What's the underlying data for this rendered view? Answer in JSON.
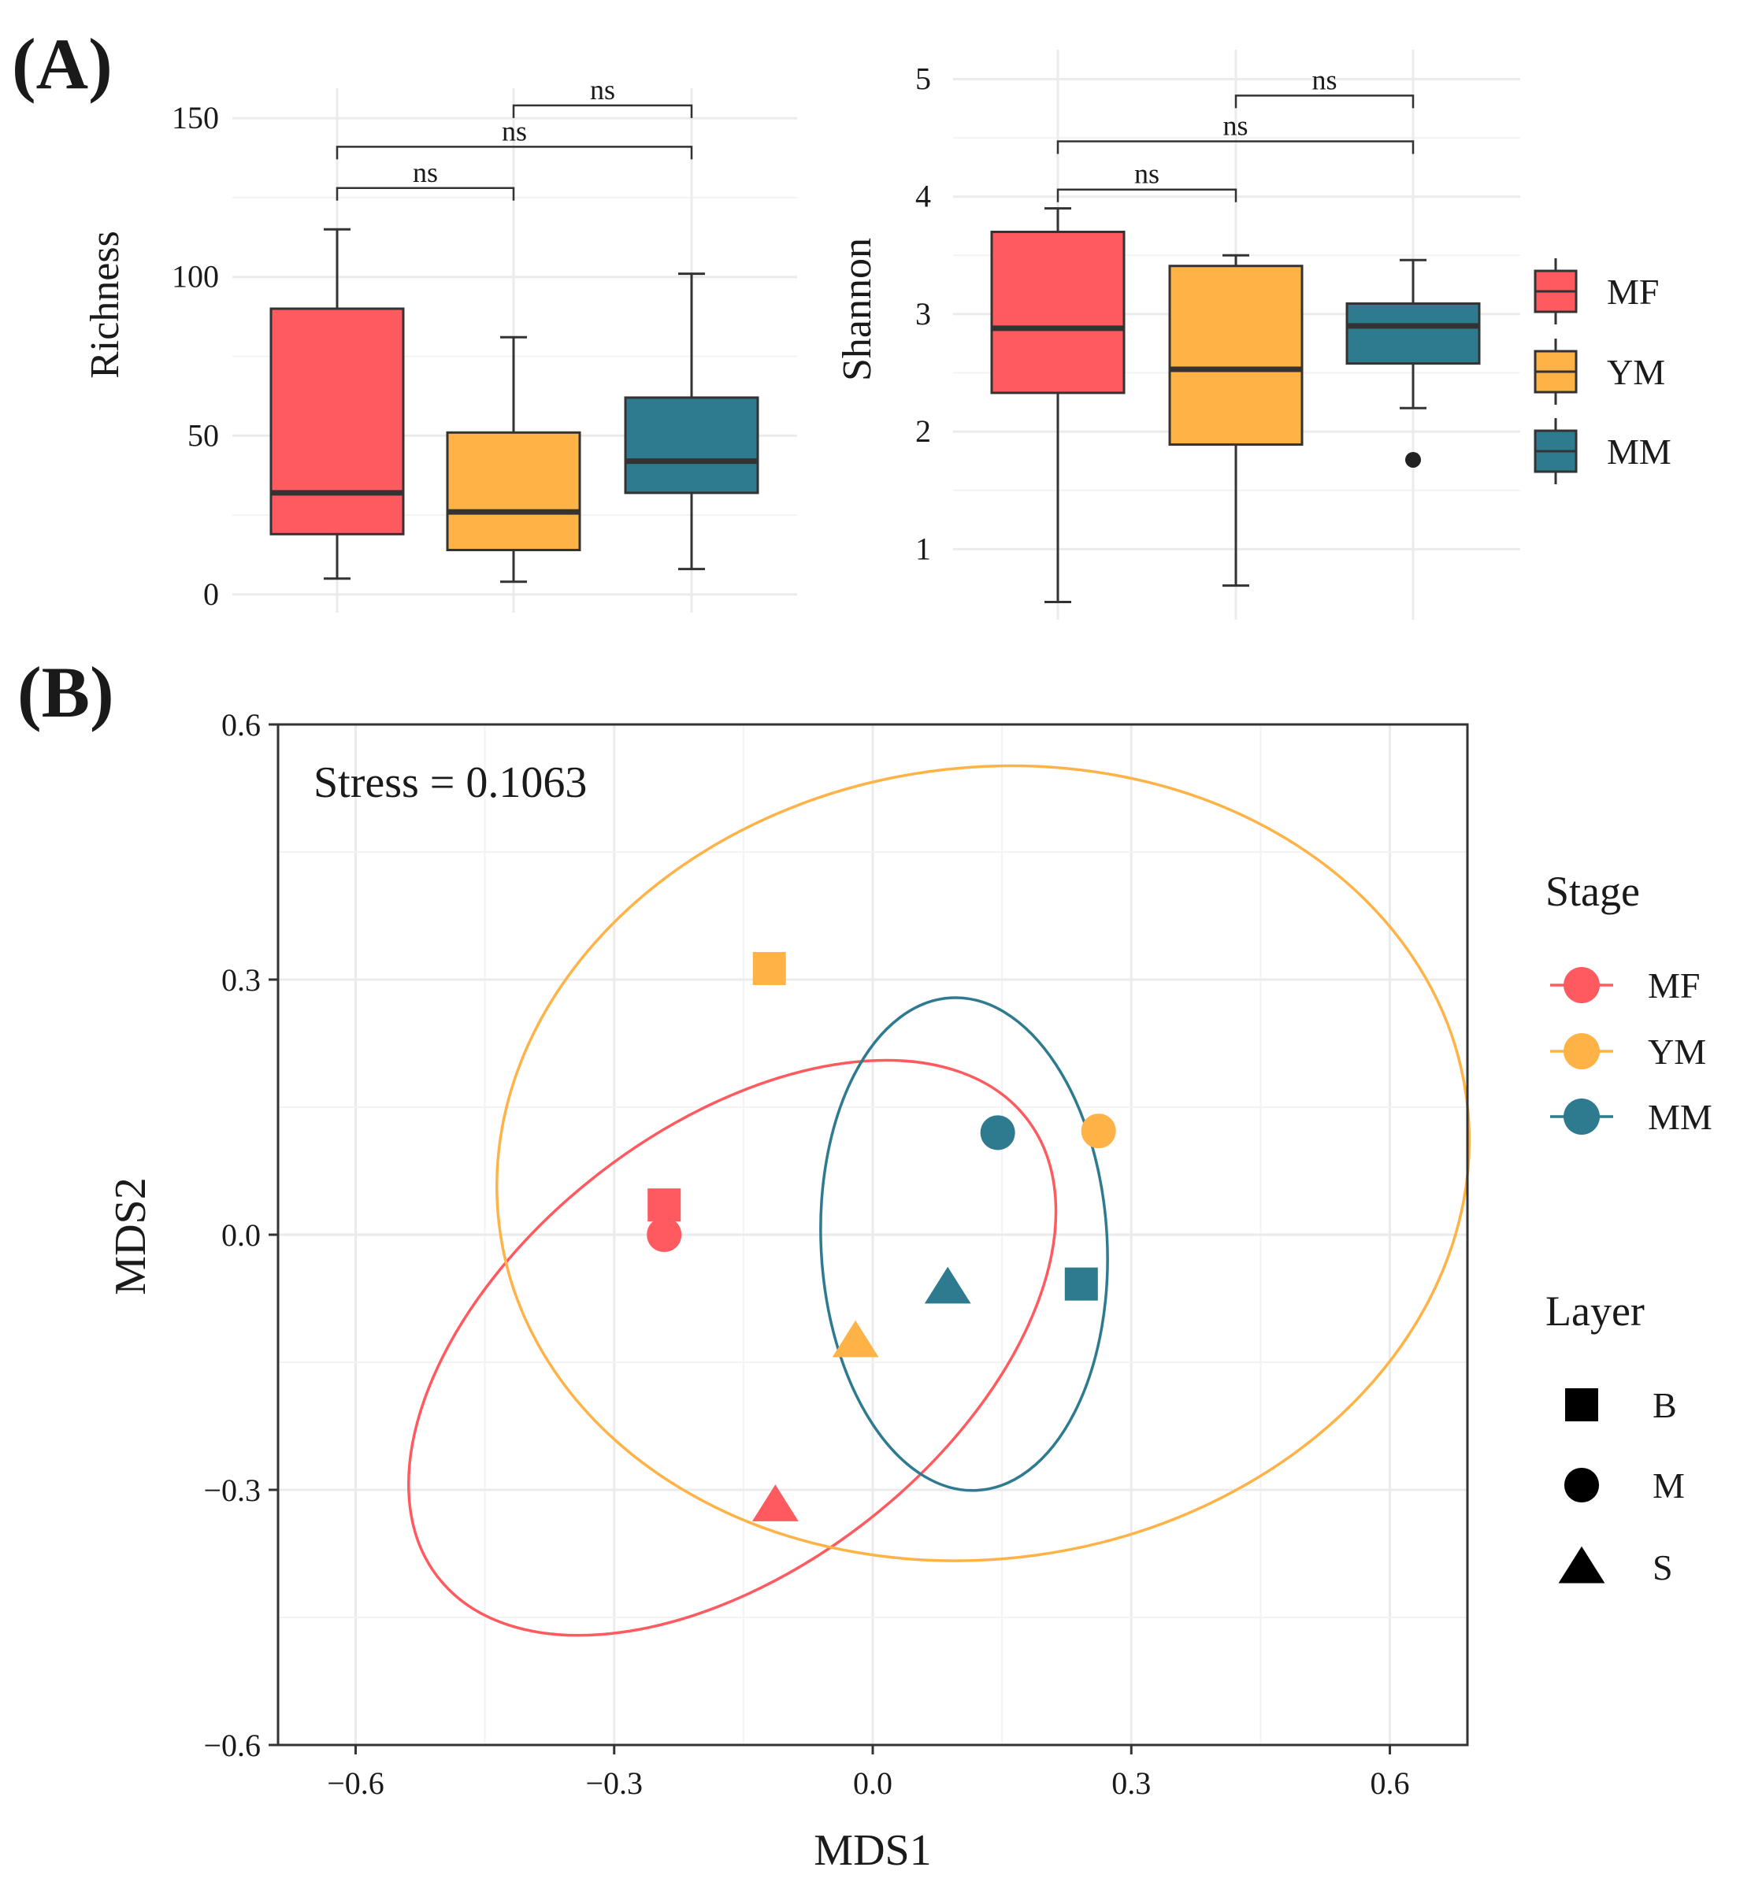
{
  "figure": {
    "panel_a_label": "(A)",
    "panel_b_label": "(B)"
  },
  "colors": {
    "MF": "#FF5A5F",
    "YM": "#FFB347",
    "MM": "#2E7A8E",
    "outlier": "#222222"
  },
  "chart_data": [
    {
      "id": "richness",
      "type": "box",
      "title": "",
      "xlabel": "",
      "ylabel": "Richness",
      "ylim": [
        -2,
        152
      ],
      "yticks": [
        0,
        50,
        100,
        150
      ],
      "grid": true,
      "groups": [
        {
          "name": "MF",
          "min": 5,
          "q1": 19,
          "median": 32,
          "q3": 90,
          "max": 115
        },
        {
          "name": "YM",
          "min": 4,
          "q1": 14,
          "median": 26,
          "q3": 51,
          "max": 81
        },
        {
          "name": "MM",
          "min": 8,
          "q1": 32,
          "median": 42,
          "q3": 62,
          "max": 101
        }
      ],
      "comparisons": [
        {
          "from": 0,
          "to": 1,
          "y": 128,
          "label": "ns"
        },
        {
          "from": 0,
          "to": 2,
          "y": 141,
          "label": "ns"
        },
        {
          "from": 1,
          "to": 2,
          "y": 154,
          "label": "ns"
        }
      ]
    },
    {
      "id": "shannon",
      "type": "box",
      "title": "",
      "xlabel": "",
      "ylabel": "Shannon",
      "ylim": [
        0.5,
        5.05
      ],
      "yticks": [
        1,
        2,
        3,
        4,
        5
      ],
      "grid": true,
      "groups": [
        {
          "name": "MF",
          "min": 0.55,
          "q1": 2.33,
          "median": 2.88,
          "q3": 3.7,
          "max": 3.9,
          "outliers": []
        },
        {
          "name": "YM",
          "min": 0.69,
          "q1": 1.89,
          "median": 2.53,
          "q3": 3.41,
          "max": 3.5,
          "outliers": []
        },
        {
          "name": "MM",
          "min": 2.2,
          "q1": 2.58,
          "median": 2.9,
          "q3": 3.09,
          "max": 3.46,
          "outliers": [
            1.76
          ]
        }
      ],
      "comparisons": [
        {
          "from": 0,
          "to": 1,
          "y": 4.06,
          "label": "ns"
        },
        {
          "from": 0,
          "to": 2,
          "y": 4.47,
          "label": "ns"
        },
        {
          "from": 1,
          "to": 2,
          "y": 4.86,
          "label": "ns"
        }
      ],
      "legend": {
        "position": "right",
        "entries": [
          "MF",
          "YM",
          "MM"
        ]
      }
    },
    {
      "id": "nmds",
      "type": "scatter",
      "title": "",
      "xlabel": "MDS1",
      "ylabel": "MDS2",
      "xlim": [
        -0.69,
        0.69
      ],
      "ylim": [
        -0.6,
        0.6
      ],
      "xticks": [
        -0.6,
        -0.3,
        0.0,
        0.3,
        0.6
      ],
      "yticks": [
        -0.6,
        -0.3,
        0.0,
        0.3,
        0.6
      ],
      "xtick_labels": [
        "−0.6",
        "−0.3",
        "0.0",
        "0.3",
        "0.6"
      ],
      "ytick_labels": [
        "−0.6",
        "−0.3",
        "0.0",
        "0.3",
        "0.6"
      ],
      "grid": true,
      "annotation": "Stress = 0.1063",
      "points": [
        {
          "stage": "MF",
          "layer": "B",
          "x": -0.242,
          "y": 0.035
        },
        {
          "stage": "MF",
          "layer": "M",
          "x": -0.242,
          "y": 0.0
        },
        {
          "stage": "MF",
          "layer": "S",
          "x": -0.113,
          "y": -0.318
        },
        {
          "stage": "YM",
          "layer": "B",
          "x": -0.12,
          "y": 0.313
        },
        {
          "stage": "YM",
          "layer": "M",
          "x": 0.262,
          "y": 0.122
        },
        {
          "stage": "YM",
          "layer": "S",
          "x": -0.02,
          "y": -0.125
        },
        {
          "stage": "MM",
          "layer": "B",
          "x": 0.242,
          "y": -0.058
        },
        {
          "stage": "MM",
          "layer": "M",
          "x": 0.145,
          "y": 0.12
        },
        {
          "stage": "MM",
          "layer": "S",
          "x": 0.087,
          "y": -0.062
        }
      ],
      "ellipses": [
        {
          "stage": "MF",
          "cx": -0.163,
          "cy": -0.133,
          "rx": 0.433,
          "ry": 0.258,
          "angle_deg": -38
        },
        {
          "stage": "YM",
          "cx": 0.128,
          "cy": 0.084,
          "rx": 0.566,
          "ry": 0.465,
          "angle_deg": -8
        },
        {
          "stage": "MM",
          "cx": 0.106,
          "cy": -0.011,
          "rx": 0.166,
          "ry": 0.29,
          "angle_deg": -3
        }
      ],
      "legend_stage": {
        "title": "Stage",
        "entries": [
          "MF",
          "YM",
          "MM"
        ]
      },
      "legend_layer": {
        "title": "Layer",
        "entries": [
          "B",
          "M",
          "S"
        ]
      }
    }
  ]
}
